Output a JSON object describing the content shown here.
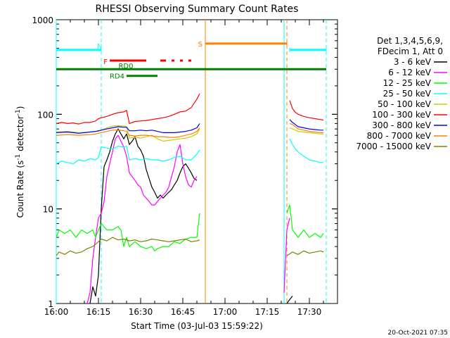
{
  "chart_data": {
    "type": "line",
    "title": "RHESSI Observing Summary Count Rates",
    "xlabel": "Start Time (03-Jul-03 15:59:22)",
    "ylabel_main": "Count Rate (s",
    "ylabel_exp1": "-1",
    "ylabel_mid": " detector",
    "ylabel_exp2": "-1",
    "ylabel_end": ")",
    "y_scale": "log",
    "xlim": [
      "16:00",
      "17:40"
    ],
    "ylim": [
      1,
      1000
    ],
    "x_ticks": [
      "16:00",
      "16:15",
      "16:30",
      "16:45",
      "17:00",
      "17:15",
      "17:30"
    ],
    "y_ticks": [
      "1",
      "10",
      "100",
      "1000"
    ],
    "legend_header": [
      "Det 1,3,4,5,6,9,",
      "FDecim 1, Att 0"
    ],
    "legend_position": "right",
    "timestamp": "20-Oct-2021 07:35",
    "series": [
      {
        "name": "3 - 6 keV",
        "color": "#000000",
        "x": [
          "16:12",
          "16:13",
          "16:14",
          "16:15",
          "16:16",
          "16:17",
          "16:18",
          "16:19",
          "16:20",
          "16:21",
          "16:22",
          "16:23",
          "16:24",
          "16:25",
          "16:26",
          "16:27",
          "16:28",
          "16:29",
          "16:30",
          "16:31",
          "16:32",
          "16:33",
          "16:34",
          "16:35",
          "16:36",
          "16:37",
          "16:38",
          "16:39",
          "16:40",
          "16:41",
          "16:42",
          "16:43",
          "16:44",
          "16:45",
          "16:46",
          "16:47",
          "16:48",
          "16:49",
          "16:50",
          "17:22",
          "17:23",
          "17:24"
        ],
        "values": [
          1,
          1.5,
          1.2,
          2,
          10,
          28,
          33,
          40,
          52,
          62,
          70,
          62,
          55,
          62,
          48,
          52,
          58,
          46,
          42,
          36,
          26,
          21,
          17,
          15,
          13,
          14,
          13,
          14,
          15,
          16,
          18,
          20,
          24,
          28,
          30,
          27,
          24,
          21,
          20,
          1,
          1.1,
          1.2
        ]
      },
      {
        "name": "6 - 12 keV",
        "color": "#ff00ff",
        "x": [
          "16:11",
          "16:12",
          "16:13",
          "16:14",
          "16:15",
          "16:16",
          "16:17",
          "16:18",
          "16:19",
          "16:20",
          "16:21",
          "16:22",
          "16:23",
          "16:24",
          "16:25",
          "16:26",
          "16:27",
          "16:28",
          "16:29",
          "16:30",
          "16:31",
          "16:32",
          "16:33",
          "16:34",
          "16:35",
          "16:36",
          "16:37",
          "16:38",
          "16:39",
          "16:40",
          "16:41",
          "16:42",
          "16:43",
          "16:44",
          "16:45",
          "16:46",
          "16:47",
          "16:48",
          "16:49",
          "16:50",
          "17:21",
          "17:22",
          "17:23"
        ],
        "values": [
          1,
          1.3,
          3,
          5,
          8,
          9,
          12,
          22,
          30,
          40,
          55,
          60,
          52,
          45,
          36,
          24,
          22,
          20,
          18,
          17,
          14,
          13,
          12,
          11,
          11,
          12,
          13,
          14,
          15,
          17,
          22,
          28,
          40,
          48,
          30,
          22,
          18,
          17,
          20,
          22,
          1.3,
          6,
          8
        ]
      },
      {
        "name": "12 - 25 keV",
        "color": "#00ff00",
        "x": [
          "16:00",
          "16:01",
          "16:03",
          "16:05",
          "16:07",
          "16:09",
          "16:11",
          "16:13",
          "16:14",
          "16:15",
          "16:16",
          "16:18",
          "16:20",
          "16:22",
          "16:23",
          "16:24",
          "16:25",
          "16:26",
          "16:28",
          "16:30",
          "16:32",
          "16:34",
          "16:35",
          "16:36",
          "16:38",
          "16:40",
          "16:42",
          "16:44",
          "16:46",
          "16:48",
          "16:50",
          "16:51",
          "17:22",
          "17:23",
          "17:24",
          "17:26",
          "17:28",
          "17:30",
          "17:32",
          "17:34",
          "17:35"
        ],
        "values": [
          5,
          6,
          5.5,
          6,
          5,
          6,
          5.5,
          6,
          5,
          6,
          7,
          6,
          6,
          6.5,
          6,
          4,
          5,
          4,
          4.5,
          4,
          3.8,
          4,
          3.6,
          3.8,
          4,
          4,
          4.5,
          4.3,
          4.8,
          5,
          5,
          9,
          9,
          11,
          6,
          5,
          6,
          5,
          5.5,
          5,
          5.5
        ]
      },
      {
        "name": "25 - 50 keV",
        "color": "#00ffff",
        "x": [
          "16:00",
          "16:02",
          "16:04",
          "16:06",
          "16:08",
          "16:10",
          "16:12",
          "16:14",
          "16:15",
          "16:16",
          "16:18",
          "16:20",
          "16:22",
          "16:24",
          "16:25",
          "16:26",
          "16:28",
          "16:30",
          "16:32",
          "16:34",
          "16:36",
          "16:38",
          "16:40",
          "16:42",
          "16:44",
          "16:46",
          "16:48",
          "16:50",
          "16:51",
          "17:23",
          "17:24",
          "17:25",
          "17:26",
          "17:28",
          "17:30",
          "17:32",
          "17:34",
          "17:35"
        ],
        "values": [
          30,
          32,
          31,
          30,
          33,
          32,
          34,
          33,
          35,
          45,
          44,
          43,
          46,
          45,
          46,
          33,
          34,
          33,
          34,
          33,
          33,
          32,
          33,
          35,
          36,
          33,
          33,
          38,
          42,
          55,
          48,
          43,
          40,
          36,
          33,
          32,
          31,
          31
        ]
      },
      {
        "name": "50 - 100 keV",
        "color": "#cccc00",
        "x": [
          "16:00",
          "16:04",
          "16:08",
          "16:12",
          "16:14",
          "16:15",
          "16:18",
          "16:20",
          "16:22",
          "16:24",
          "16:25",
          "16:26",
          "16:28",
          "16:30",
          "16:32",
          "16:34",
          "16:36",
          "16:38",
          "16:40",
          "16:42",
          "16:44",
          "16:46",
          "16:48",
          "16:50",
          "16:51",
          "17:23",
          "17:24",
          "17:25",
          "17:26",
          "17:28",
          "17:30",
          "17:32",
          "17:34",
          "17:35"
        ],
        "values": [
          65,
          66,
          64,
          65,
          66,
          66,
          72,
          75,
          76,
          75,
          74,
          56,
          57,
          56,
          58,
          60,
          55,
          52,
          53,
          54,
          55,
          56,
          58,
          62,
          70,
          72,
          70,
          68,
          66,
          65,
          64,
          63,
          62,
          62
        ]
      },
      {
        "name": "100 - 300 keV",
        "color": "#ff0000",
        "x": [
          "16:00",
          "16:02",
          "16:04",
          "16:06",
          "16:08",
          "16:10",
          "16:12",
          "16:14",
          "16:15",
          "16:16",
          "16:18",
          "16:20",
          "16:22",
          "16:24",
          "16:25",
          "16:26",
          "16:28",
          "16:30",
          "16:32",
          "16:34",
          "16:36",
          "16:38",
          "16:40",
          "16:42",
          "16:44",
          "16:46",
          "16:48",
          "16:50",
          "16:51",
          "17:23",
          "17:24",
          "17:25",
          "17:26",
          "17:28",
          "17:30",
          "17:32",
          "17:34",
          "17:35"
        ],
        "values": [
          80,
          82,
          80,
          81,
          79,
          82,
          82,
          85,
          90,
          92,
          95,
          100,
          104,
          106,
          110,
          80,
          84,
          85,
          86,
          88,
          90,
          92,
          95,
          100,
          106,
          108,
          118,
          145,
          165,
          140,
          115,
          105,
          100,
          95,
          92,
          90,
          88,
          87
        ]
      },
      {
        "name": "300 - 800 keV",
        "color": "#0000ff",
        "x": [
          "16:00",
          "16:04",
          "16:08",
          "16:12",
          "16:14",
          "16:15",
          "16:18",
          "16:20",
          "16:22",
          "16:24",
          "16:25",
          "16:26",
          "16:28",
          "16:30",
          "16:32",
          "16:34",
          "16:36",
          "16:38",
          "16:40",
          "16:42",
          "16:44",
          "16:46",
          "16:48",
          "16:50",
          "16:51",
          "17:23",
          "17:24",
          "17:25",
          "17:26",
          "17:28",
          "17:30",
          "17:32",
          "17:34",
          "17:35"
        ],
        "values": [
          64,
          65,
          63,
          65,
          66,
          67,
          70,
          72,
          74,
          73,
          73,
          67,
          67,
          68,
          67,
          68,
          66,
          64,
          64,
          64,
          65,
          66,
          68,
          72,
          80,
          88,
          82,
          78,
          74,
          72,
          70,
          69,
          68,
          68
        ]
      },
      {
        "name": "800 - 7000 keV",
        "color": "#ff8000",
        "x": [
          "16:00",
          "16:04",
          "16:08",
          "16:12",
          "16:14",
          "16:15",
          "16:18",
          "16:20",
          "16:22",
          "16:24",
          "16:25",
          "16:26",
          "16:28",
          "16:30",
          "16:32",
          "16:34",
          "16:36",
          "16:38",
          "16:40",
          "16:42",
          "16:44",
          "16:46",
          "16:48",
          "16:50",
          "16:51",
          "17:23",
          "17:24",
          "17:25",
          "17:26",
          "17:28",
          "17:30",
          "17:32",
          "17:34",
          "17:35"
        ],
        "values": [
          60,
          61,
          60,
          61,
          62,
          63,
          66,
          68,
          68,
          67,
          66,
          60,
          59,
          60,
          60,
          59,
          58,
          58,
          57,
          57,
          58,
          60,
          62,
          66,
          72,
          80,
          78,
          74,
          70,
          68,
          66,
          65,
          64,
          64
        ]
      },
      {
        "name": "7000 - 15000 keV",
        "color": "#808000",
        "x": [
          "16:00",
          "16:01",
          "16:03",
          "16:05",
          "16:07",
          "16:09",
          "16:11",
          "16:13",
          "16:15",
          "16:16",
          "16:18",
          "16:20",
          "16:22",
          "16:24",
          "16:26",
          "16:28",
          "16:30",
          "16:32",
          "16:34",
          "16:36",
          "16:38",
          "16:40",
          "16:42",
          "16:44",
          "16:46",
          "16:48",
          "16:50",
          "16:51",
          "17:22",
          "17:24",
          "17:26",
          "17:28",
          "17:30",
          "17:32",
          "17:34",
          "17:35"
        ],
        "values": [
          3.2,
          3.5,
          3.3,
          3.6,
          3.4,
          3.5,
          3.8,
          4,
          4.5,
          4.8,
          4.6,
          5,
          4.7,
          4.8,
          4.6,
          4.7,
          4.5,
          4.6,
          4.8,
          4.7,
          4.6,
          4.5,
          4.6,
          4.7,
          4.8,
          4.5,
          4.6,
          4.7,
          3.2,
          3.5,
          3.3,
          3.6,
          3.4,
          3.5,
          3.6,
          3.5
        ]
      }
    ],
    "flags": [
      {
        "label": "N",
        "color": "#00ffff",
        "level": 480,
        "segments": [
          [
            "16:00",
            "16:16"
          ],
          [
            "17:23",
            "17:36"
          ]
        ]
      },
      {
        "label": "F",
        "color": "#ff0000",
        "level": 370,
        "segments": [
          [
            "16:19",
            "16:32"
          ],
          [
            "16:37",
            "16:39"
          ],
          [
            "16:41",
            "16:42"
          ],
          [
            "16:44",
            "16:45"
          ],
          [
            "16:47",
            "16:48"
          ]
        ]
      },
      {
        "label": "RD0",
        "color": "#008000",
        "level": 300,
        "segments": [
          [
            "16:00",
            "17:36"
          ]
        ]
      },
      {
        "label": "RD4",
        "color": "#008000",
        "level": 255,
        "segments": [
          [
            "16:25",
            "16:36"
          ]
        ]
      },
      {
        "label": "S",
        "color": "#ff8000",
        "level": 560,
        "segments": [
          [
            "16:53",
            "17:22"
          ]
        ]
      }
    ],
    "vlines": [
      {
        "time": "16:00",
        "color": "#00ffff",
        "style": "solid"
      },
      {
        "time": "16:16",
        "color": "#00ffff",
        "style": "dashed"
      },
      {
        "time": "16:53",
        "color": "#ff8000",
        "style": "solid"
      },
      {
        "time": "17:21",
        "color": "#00ffff",
        "style": "solid"
      },
      {
        "time": "17:22",
        "color": "#ff8000",
        "style": "dashed"
      },
      {
        "time": "17:36",
        "color": "#00ffff",
        "style": "dashed"
      }
    ]
  }
}
